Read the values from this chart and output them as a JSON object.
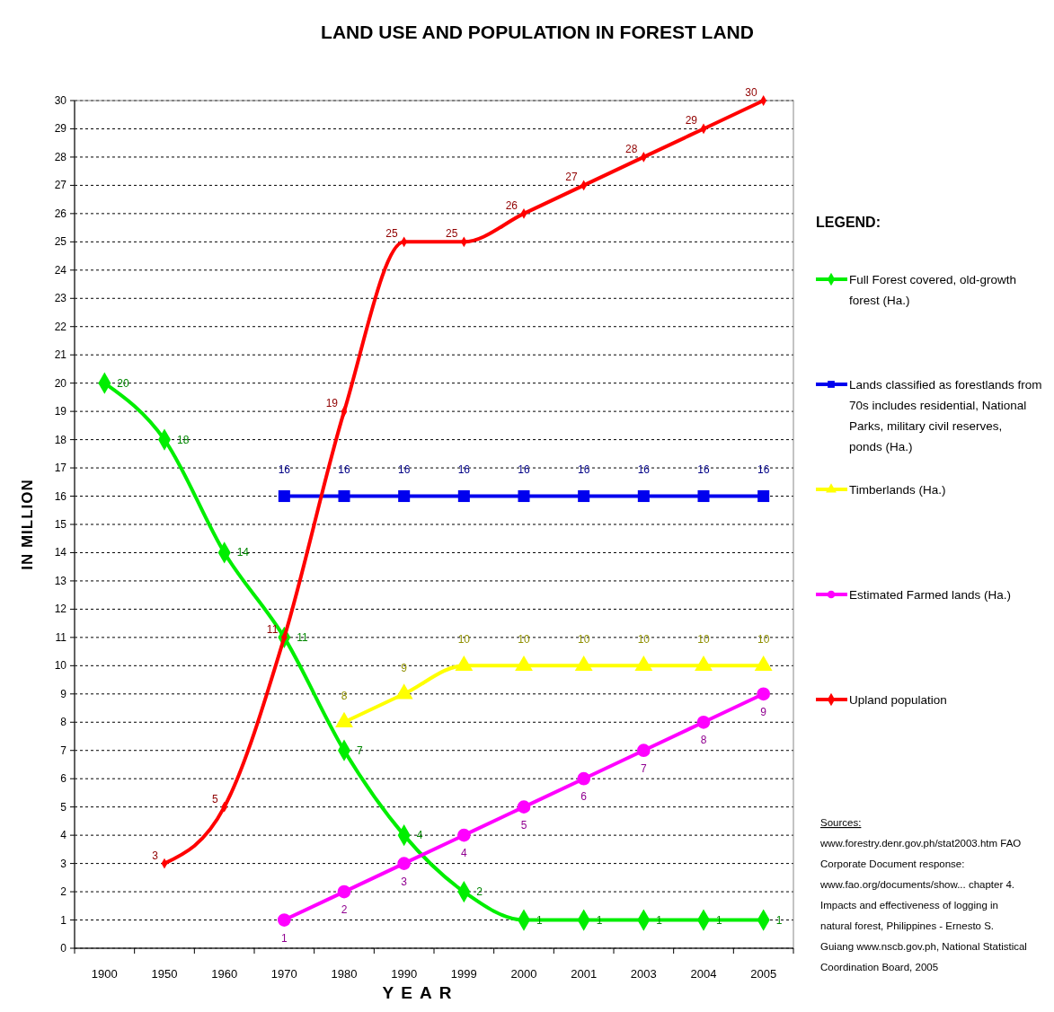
{
  "chart_data": {
    "type": "line",
    "title": "LAND USE AND POPULATION IN FOREST LAND",
    "xlabel": "YEAR",
    "ylabel": "IN MILLION",
    "legend_title": "LEGEND:",
    "categories": [
      "1900",
      "1950",
      "1960",
      "1970",
      "1980",
      "1990",
      "1999",
      "2000",
      "2001",
      "2003",
      "2004",
      "2005"
    ],
    "ylim": [
      0,
      30
    ],
    "yticks": [
      0,
      1,
      2,
      3,
      4,
      5,
      6,
      7,
      8,
      9,
      10,
      11,
      12,
      13,
      14,
      15,
      16,
      17,
      18,
      19,
      20,
      21,
      22,
      23,
      24,
      25,
      26,
      27,
      28,
      29,
      30
    ],
    "grid": "y",
    "legend": "right",
    "data_labels": true,
    "line_style": "solid",
    "series": [
      {
        "name": "Full Forest covered, old-growth forest (Ha.)",
        "color": "#00ee00",
        "marker": "diamond",
        "values": [
          20,
          18,
          14,
          11,
          7,
          4,
          2,
          1,
          1,
          1,
          1,
          1
        ]
      },
      {
        "name": "Lands classified as forestlands from 70s includes residential, National Parks, military civil reserves, ponds (Ha.)",
        "color": "#0000ee",
        "marker": "square",
        "values": [
          null,
          null,
          null,
          16,
          16,
          16,
          16,
          16,
          16,
          16,
          16,
          16
        ]
      },
      {
        "name": "Timberlands (Ha.)",
        "color": "#ffff00",
        "marker": "triangle",
        "values": [
          null,
          null,
          null,
          null,
          8,
          9,
          10,
          10,
          10,
          10,
          10,
          10
        ]
      },
      {
        "name": "Estimated Farmed lands (Ha.)",
        "color": "#ff00ff",
        "marker": "circle",
        "values": [
          null,
          null,
          null,
          1,
          2,
          3,
          4,
          5,
          6,
          7,
          8,
          9
        ]
      },
      {
        "name": "Upland population",
        "color": "#ff0000",
        "marker": "diamond",
        "values": [
          null,
          3,
          5,
          11,
          19,
          25,
          25,
          26,
          27,
          28,
          29,
          30
        ]
      }
    ],
    "annotations": [
      "Sources:",
      "www.forestry.denr.gov.ph/stat2003.htm FAO Corporate Document response: www.fao.org/documents/show... chapter 4. Impacts and effectiveness of logging in natural forest, Philippines - Ernesto S. Guiang www.nscb.gov.ph, National Statistical Coordination Board, 2005"
    ]
  }
}
